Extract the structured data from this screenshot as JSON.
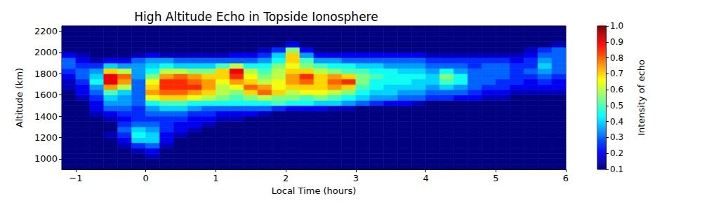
{
  "chart_data": {
    "type": "heatmap",
    "title": "High Altitude Echo in Topside Ionosphere",
    "x_label": "Local Time (hours)",
    "y_label": "Altitude (km)",
    "xlim": [
      -1.2,
      6
    ],
    "xticks": [
      {
        "value": -1,
        "label": "−1"
      },
      0,
      1,
      2,
      3,
      4,
      5,
      6
    ],
    "ylim": [
      900,
      2250
    ],
    "yticks": [
      1000,
      1200,
      1400,
      1600,
      1800,
      2000,
      2200
    ],
    "x_bins": [
      -1.2,
      -1,
      -0.8,
      -0.6,
      -0.4,
      -0.2,
      0,
      0.2,
      0.4,
      0.6,
      0.8,
      1,
      1.2,
      1.4,
      1.6,
      1.8,
      2,
      2.2,
      2.4,
      2.6,
      2.8,
      3,
      3.2,
      3.4,
      3.6,
      3.8,
      4,
      4.2,
      4.4,
      4.6,
      4.8,
      5,
      5.2,
      5.4,
      5.6,
      5.8,
      6
    ],
    "y_bins": [
      900,
      950,
      1000,
      1050,
      1100,
      1150,
      1200,
      1250,
      1300,
      1350,
      1400,
      1450,
      1500,
      1550,
      1600,
      1650,
      1700,
      1750,
      1800,
      1850,
      1900,
      1950,
      2000,
      2050,
      2100,
      2150,
      2200,
      2250
    ],
    "z": [
      [
        0.1,
        0.1,
        0.1,
        0.1,
        0.1,
        0.1,
        0.1,
        0.1,
        0.1,
        0.1,
        0.1,
        0.1,
        0.1,
        0.1,
        0.1,
        0.1,
        0.1,
        0.1,
        0.1,
        0.1,
        0.1,
        0.1,
        0.1,
        0.1,
        0.1,
        0.1,
        0.1,
        0.1,
        0.1,
        0.1,
        0.1,
        0.1,
        0.1,
        0.1,
        0.1,
        0.1
      ],
      [
        0.1,
        0.1,
        0.1,
        0.1,
        0.1,
        0.1,
        0.1,
        0.1,
        0.1,
        0.1,
        0.1,
        0.1,
        0.1,
        0.1,
        0.1,
        0.1,
        0.1,
        0.1,
        0.1,
        0.1,
        0.1,
        0.1,
        0.1,
        0.1,
        0.1,
        0.1,
        0.1,
        0.1,
        0.1,
        0.1,
        0.1,
        0.1,
        0.1,
        0.1,
        0.1,
        0.1
      ],
      [
        0.1,
        0.1,
        0.1,
        0.1,
        0.1,
        0.1,
        0.15,
        0.1,
        0.1,
        0.1,
        0.1,
        0.1,
        0.1,
        0.1,
        0.1,
        0.1,
        0.1,
        0.1,
        0.1,
        0.1,
        0.1,
        0.1,
        0.1,
        0.1,
        0.1,
        0.1,
        0.1,
        0.1,
        0.1,
        0.1,
        0.1,
        0.1,
        0.1,
        0.1,
        0.1,
        0.1
      ],
      [
        0.1,
        0.1,
        0.1,
        0.1,
        0.1,
        0.15,
        0.2,
        0.1,
        0.1,
        0.1,
        0.1,
        0.1,
        0.1,
        0.1,
        0.1,
        0.1,
        0.1,
        0.1,
        0.1,
        0.1,
        0.1,
        0.1,
        0.1,
        0.1,
        0.1,
        0.1,
        0.1,
        0.1,
        0.1,
        0.1,
        0.1,
        0.1,
        0.1,
        0.1,
        0.1,
        0.1
      ],
      [
        0.1,
        0.1,
        0.1,
        0.1,
        0.15,
        0.25,
        0.3,
        0.15,
        0.1,
        0.1,
        0.1,
        0.1,
        0.1,
        0.1,
        0.1,
        0.1,
        0.1,
        0.1,
        0.1,
        0.1,
        0.1,
        0.1,
        0.1,
        0.1,
        0.1,
        0.1,
        0.1,
        0.1,
        0.1,
        0.1,
        0.1,
        0.1,
        0.1,
        0.1,
        0.1,
        0.1
      ],
      [
        0.1,
        0.1,
        0.1,
        0.1,
        0.2,
        0.4,
        0.4,
        0.2,
        0.1,
        0.1,
        0.1,
        0.1,
        0.1,
        0.1,
        0.1,
        0.1,
        0.1,
        0.1,
        0.1,
        0.1,
        0.1,
        0.1,
        0.1,
        0.1,
        0.1,
        0.1,
        0.1,
        0.1,
        0.1,
        0.1,
        0.1,
        0.1,
        0.1,
        0.1,
        0.1,
        0.1
      ],
      [
        0.1,
        0.1,
        0.1,
        0.15,
        0.25,
        0.45,
        0.4,
        0.2,
        0.15,
        0.1,
        0.1,
        0.1,
        0.1,
        0.1,
        0.1,
        0.1,
        0.1,
        0.1,
        0.1,
        0.1,
        0.1,
        0.1,
        0.1,
        0.1,
        0.1,
        0.1,
        0.1,
        0.1,
        0.1,
        0.1,
        0.1,
        0.1,
        0.1,
        0.1,
        0.1,
        0.1
      ],
      [
        0.1,
        0.1,
        0.1,
        0.1,
        0.3,
        0.4,
        0.35,
        0.25,
        0.2,
        0.15,
        0.1,
        0.1,
        0.1,
        0.1,
        0.1,
        0.1,
        0.1,
        0.1,
        0.1,
        0.1,
        0.1,
        0.1,
        0.1,
        0.1,
        0.1,
        0.1,
        0.1,
        0.1,
        0.1,
        0.1,
        0.1,
        0.1,
        0.1,
        0.1,
        0.1,
        0.1
      ],
      [
        0.1,
        0.1,
        0.1,
        0.1,
        0.25,
        0.3,
        0.3,
        0.25,
        0.2,
        0.2,
        0.15,
        0.1,
        0.1,
        0.1,
        0.1,
        0.1,
        0.1,
        0.1,
        0.1,
        0.1,
        0.1,
        0.1,
        0.1,
        0.1,
        0.1,
        0.1,
        0.1,
        0.1,
        0.1,
        0.1,
        0.1,
        0.1,
        0.1,
        0.1,
        0.1,
        0.1
      ],
      [
        0.1,
        0.1,
        0.1,
        0.15,
        0.2,
        0.25,
        0.25,
        0.25,
        0.25,
        0.2,
        0.2,
        0.15,
        0.15,
        0.1,
        0.1,
        0.1,
        0.1,
        0.1,
        0.1,
        0.1,
        0.1,
        0.1,
        0.1,
        0.1,
        0.1,
        0.1,
        0.1,
        0.1,
        0.1,
        0.1,
        0.1,
        0.1,
        0.1,
        0.1,
        0.1,
        0.1
      ],
      [
        0.1,
        0.1,
        0.15,
        0.2,
        0.25,
        0.25,
        0.3,
        0.3,
        0.3,
        0.25,
        0.25,
        0.2,
        0.2,
        0.2,
        0.15,
        0.1,
        0.1,
        0.1,
        0.1,
        0.1,
        0.1,
        0.1,
        0.1,
        0.1,
        0.1,
        0.1,
        0.1,
        0.1,
        0.1,
        0.1,
        0.1,
        0.1,
        0.1,
        0.1,
        0.1,
        0.1
      ],
      [
        0.1,
        0.1,
        0.2,
        0.3,
        0.3,
        0.25,
        0.35,
        0.4,
        0.4,
        0.35,
        0.3,
        0.3,
        0.3,
        0.3,
        0.3,
        0.25,
        0.2,
        0.2,
        0.2,
        0.15,
        0.15,
        0.1,
        0.1,
        0.1,
        0.1,
        0.1,
        0.1,
        0.1,
        0.1,
        0.1,
        0.1,
        0.1,
        0.1,
        0.1,
        0.1,
        0.1
      ],
      [
        0.1,
        0.1,
        0.2,
        0.35,
        0.35,
        0.3,
        0.45,
        0.5,
        0.5,
        0.45,
        0.45,
        0.45,
        0.45,
        0.45,
        0.45,
        0.5,
        0.45,
        0.45,
        0.4,
        0.4,
        0.35,
        0.3,
        0.25,
        0.2,
        0.2,
        0.15,
        0.1,
        0.1,
        0.1,
        0.1,
        0.1,
        0.1,
        0.1,
        0.1,
        0.1,
        0.1
      ],
      [
        0.1,
        0.15,
        0.25,
        0.4,
        0.35,
        0.3,
        0.65,
        0.7,
        0.7,
        0.65,
        0.6,
        0.55,
        0.5,
        0.55,
        0.6,
        0.55,
        0.55,
        0.5,
        0.55,
        0.5,
        0.45,
        0.4,
        0.35,
        0.35,
        0.3,
        0.3,
        0.25,
        0.25,
        0.2,
        0.2,
        0.15,
        0.15,
        0.1,
        0.1,
        0.1,
        0.1
      ],
      [
        0.1,
        0.2,
        0.3,
        0.5,
        0.4,
        0.3,
        0.75,
        0.8,
        0.8,
        0.75,
        0.7,
        0.6,
        0.55,
        0.7,
        0.8,
        0.7,
        0.6,
        0.65,
        0.65,
        0.6,
        0.55,
        0.45,
        0.4,
        0.4,
        0.35,
        0.35,
        0.3,
        0.3,
        0.3,
        0.25,
        0.2,
        0.2,
        0.15,
        0.15,
        0.15,
        0.15
      ],
      [
        0.15,
        0.2,
        0.35,
        0.75,
        0.6,
        0.3,
        0.7,
        0.85,
        0.85,
        0.85,
        0.75,
        0.6,
        0.65,
        0.8,
        0.75,
        0.65,
        0.7,
        0.7,
        0.7,
        0.75,
        0.7,
        0.5,
        0.45,
        0.4,
        0.4,
        0.4,
        0.35,
        0.4,
        0.35,
        0.3,
        0.25,
        0.25,
        0.2,
        0.2,
        0.2,
        0.2
      ],
      [
        0.15,
        0.25,
        0.45,
        0.9,
        0.75,
        0.3,
        0.65,
        0.85,
        0.85,
        0.8,
        0.75,
        0.65,
        0.75,
        0.7,
        0.6,
        0.65,
        0.75,
        0.8,
        0.7,
        0.8,
        0.85,
        0.55,
        0.45,
        0.45,
        0.45,
        0.4,
        0.4,
        0.5,
        0.45,
        0.3,
        0.3,
        0.25,
        0.25,
        0.2,
        0.25,
        0.2
      ],
      [
        0.2,
        0.3,
        0.4,
        0.9,
        0.8,
        0.35,
        0.55,
        0.75,
        0.8,
        0.75,
        0.7,
        0.7,
        0.85,
        0.65,
        0.55,
        0.6,
        0.75,
        0.85,
        0.7,
        0.75,
        0.7,
        0.55,
        0.5,
        0.45,
        0.45,
        0.45,
        0.4,
        0.55,
        0.45,
        0.3,
        0.3,
        0.3,
        0.25,
        0.25,
        0.3,
        0.25
      ],
      [
        0.25,
        0.3,
        0.35,
        0.7,
        0.6,
        0.35,
        0.45,
        0.6,
        0.6,
        0.55,
        0.55,
        0.7,
        0.9,
        0.6,
        0.5,
        0.6,
        0.7,
        0.7,
        0.6,
        0.55,
        0.5,
        0.5,
        0.45,
        0.45,
        0.4,
        0.4,
        0.35,
        0.45,
        0.35,
        0.3,
        0.3,
        0.3,
        0.25,
        0.3,
        0.35,
        0.3
      ],
      [
        0.3,
        0.25,
        0.25,
        0.4,
        0.35,
        0.35,
        0.4,
        0.45,
        0.4,
        0.4,
        0.4,
        0.5,
        0.6,
        0.45,
        0.45,
        0.55,
        0.65,
        0.55,
        0.5,
        0.45,
        0.45,
        0.4,
        0.4,
        0.35,
        0.35,
        0.35,
        0.3,
        0.3,
        0.3,
        0.25,
        0.3,
        0.3,
        0.25,
        0.25,
        0.4,
        0.3
      ],
      [
        0.3,
        0.2,
        0.15,
        0.2,
        0.2,
        0.3,
        0.35,
        0.35,
        0.3,
        0.3,
        0.3,
        0.3,
        0.3,
        0.3,
        0.35,
        0.45,
        0.7,
        0.5,
        0.35,
        0.35,
        0.3,
        0.3,
        0.3,
        0.3,
        0.3,
        0.3,
        0.25,
        0.25,
        0.25,
        0.25,
        0.25,
        0.25,
        0.2,
        0.25,
        0.35,
        0.3
      ],
      [
        0.2,
        0.15,
        0.1,
        0.1,
        0.1,
        0.15,
        0.2,
        0.15,
        0.15,
        0.15,
        0.15,
        0.15,
        0.2,
        0.2,
        0.25,
        0.4,
        0.7,
        0.35,
        0.2,
        0.2,
        0.2,
        0.2,
        0.2,
        0.2,
        0.2,
        0.2,
        0.15,
        0.15,
        0.15,
        0.15,
        0.15,
        0.15,
        0.15,
        0.2,
        0.3,
        0.3
      ],
      [
        0.1,
        0.1,
        0.1,
        0.1,
        0.1,
        0.1,
        0.1,
        0.1,
        0.1,
        0.1,
        0.1,
        0.1,
        0.1,
        0.1,
        0.15,
        0.25,
        0.55,
        0.2,
        0.1,
        0.1,
        0.1,
        0.1,
        0.1,
        0.1,
        0.1,
        0.1,
        0.1,
        0.1,
        0.1,
        0.1,
        0.1,
        0.1,
        0.1,
        0.15,
        0.25,
        0.3
      ],
      [
        0.1,
        0.1,
        0.1,
        0.1,
        0.1,
        0.1,
        0.1,
        0.1,
        0.1,
        0.1,
        0.1,
        0.1,
        0.1,
        0.1,
        0.1,
        0.1,
        0.2,
        0.1,
        0.1,
        0.1,
        0.1,
        0.1,
        0.1,
        0.1,
        0.1,
        0.1,
        0.1,
        0.1,
        0.1,
        0.1,
        0.1,
        0.1,
        0.1,
        0.1,
        0.1,
        0.15
      ],
      [
        0.1,
        0.1,
        0.1,
        0.1,
        0.1,
        0.1,
        0.1,
        0.1,
        0.1,
        0.1,
        0.1,
        0.1,
        0.1,
        0.1,
        0.1,
        0.1,
        0.1,
        0.1,
        0.1,
        0.1,
        0.1,
        0.1,
        0.1,
        0.1,
        0.1,
        0.1,
        0.1,
        0.1,
        0.1,
        0.1,
        0.1,
        0.1,
        0.1,
        0.1,
        0.1,
        0.1
      ],
      [
        0.1,
        0.1,
        0.1,
        0.1,
        0.1,
        0.1,
        0.1,
        0.1,
        0.1,
        0.1,
        0.1,
        0.1,
        0.1,
        0.1,
        0.1,
        0.1,
        0.1,
        0.1,
        0.1,
        0.1,
        0.1,
        0.1,
        0.1,
        0.1,
        0.1,
        0.1,
        0.1,
        0.1,
        0.1,
        0.1,
        0.1,
        0.1,
        0.1,
        0.1,
        0.1,
        0.1
      ],
      [
        0.1,
        0.1,
        0.1,
        0.1,
        0.1,
        0.1,
        0.1,
        0.1,
        0.1,
        0.1,
        0.1,
        0.1,
        0.1,
        0.1,
        0.1,
        0.1,
        0.1,
        0.1,
        0.1,
        0.1,
        0.1,
        0.1,
        0.1,
        0.1,
        0.1,
        0.1,
        0.1,
        0.1,
        0.1,
        0.1,
        0.1,
        0.1,
        0.1,
        0.1,
        0.1,
        0.1
      ]
    ],
    "colorbar": {
      "label": "Intensity of echo",
      "range": [
        0.1,
        1
      ],
      "ticks": [
        0.1,
        0.2,
        0.3,
        0.4,
        0.5,
        0.6,
        0.7,
        0.8,
        0.9,
        {
          "value": 1,
          "label": "1.0"
        }
      ]
    }
  }
}
